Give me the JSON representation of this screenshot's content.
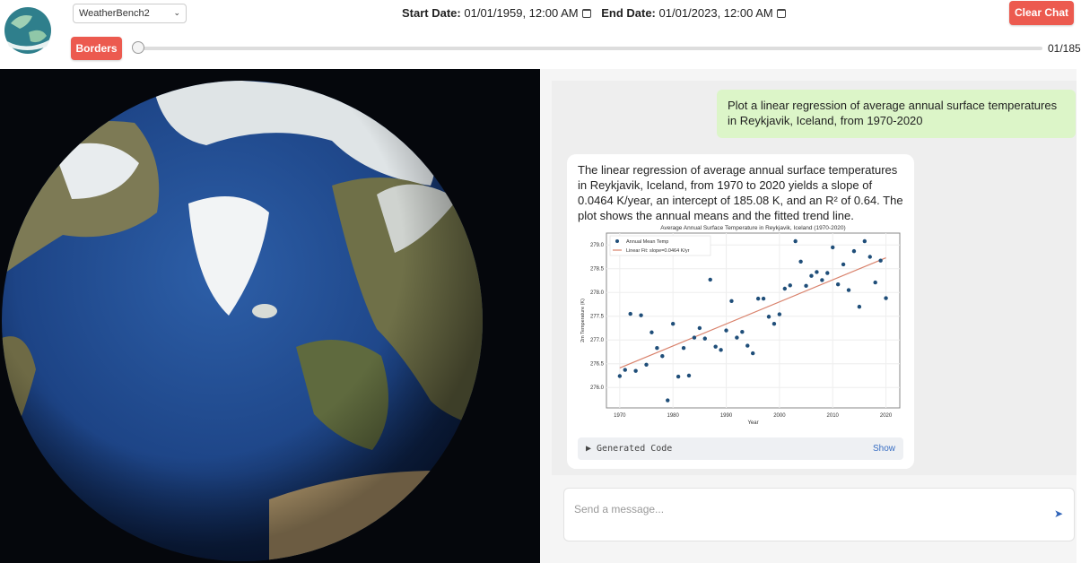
{
  "header": {
    "dataset": "WeatherBench2",
    "start_label": "Start Date:",
    "start_value": "01/01/1959, 12:00 AM",
    "end_label": "End Date:",
    "end_value": "01/01/2023, 12:00 AM",
    "clear_chat": "Clear Chat",
    "borders": "Borders",
    "frame_counter": "01/185",
    "slider_position": 0
  },
  "chat": {
    "user_message": "Plot a linear regression of average annual surface temperatures in Reykjavik, Iceland, from 1970-2020",
    "assistant_message": "The linear regression of average annual surface temperatures in Reykjavik, Iceland, from 1970 to 2020 yields a slope of 0.0464 K/year, an intercept of 185.08 K, and an R² of 0.64. The plot shows the annual means and the fitted trend line.",
    "generated_code_label": "▶ Generated Code",
    "show_label": "Show",
    "input_placeholder": "Send a message...",
    "send_icon": "send-icon"
  },
  "colors": {
    "accent_red": "#ec5a4f",
    "user_bubble": "#dcf5c8",
    "point": "#1f4e79",
    "fit": "#d9826c"
  },
  "chart_data": {
    "type": "scatter",
    "title": "Average Annual Surface Temperature in Reykjavik, Iceland (1970-2020)",
    "xlabel": "Year",
    "ylabel": "2m Temperature (K)",
    "xlim": [
      1967.5,
      2022.6
    ],
    "ylim": [
      275.57,
      279.25
    ],
    "xticks": [
      1970,
      1980,
      1990,
      2000,
      2010,
      2020
    ],
    "yticks": [
      "276.0",
      "276.5",
      "277.0",
      "277.5",
      "278.0",
      "278.5",
      "279.0"
    ],
    "grid": true,
    "legend": "top-left",
    "series": [
      {
        "name": "Annual Mean Temp",
        "type": "scatter",
        "x": [
          1970,
          1971,
          1972,
          1973,
          1974,
          1975,
          1976,
          1977,
          1978,
          1979,
          1980,
          1981,
          1982,
          1983,
          1984,
          1985,
          1986,
          1987,
          1988,
          1989,
          1990,
          1991,
          1992,
          1993,
          1994,
          1995,
          1996,
          1997,
          1998,
          1999,
          2000,
          2001,
          2002,
          2003,
          2004,
          2005,
          2006,
          2007,
          2008,
          2009,
          2010,
          2011,
          2012,
          2013,
          2014,
          2015,
          2016,
          2017,
          2018,
          2019,
          2020
        ],
        "y": [
          276.24,
          276.37,
          277.55,
          276.35,
          277.52,
          276.48,
          277.16,
          276.83,
          276.66,
          275.73,
          277.34,
          276.23,
          276.83,
          276.25,
          277.05,
          277.25,
          277.03,
          278.27,
          276.86,
          276.79,
          277.2,
          277.82,
          277.05,
          277.17,
          276.88,
          276.72,
          277.87,
          277.87,
          277.49,
          277.34,
          277.54,
          278.08,
          278.15,
          279.08,
          278.65,
          278.14,
          278.35,
          278.43,
          278.26,
          278.41,
          278.95,
          278.17,
          278.59,
          278.05,
          278.87,
          277.7,
          279.08,
          278.75,
          278.21,
          278.67,
          277.88
        ]
      },
      {
        "name": "Linear Fit: slope=0.0464 K/yr",
        "type": "line",
        "x": [
          1970,
          2020
        ],
        "y": [
          276.41,
          278.73
        ]
      }
    ]
  }
}
